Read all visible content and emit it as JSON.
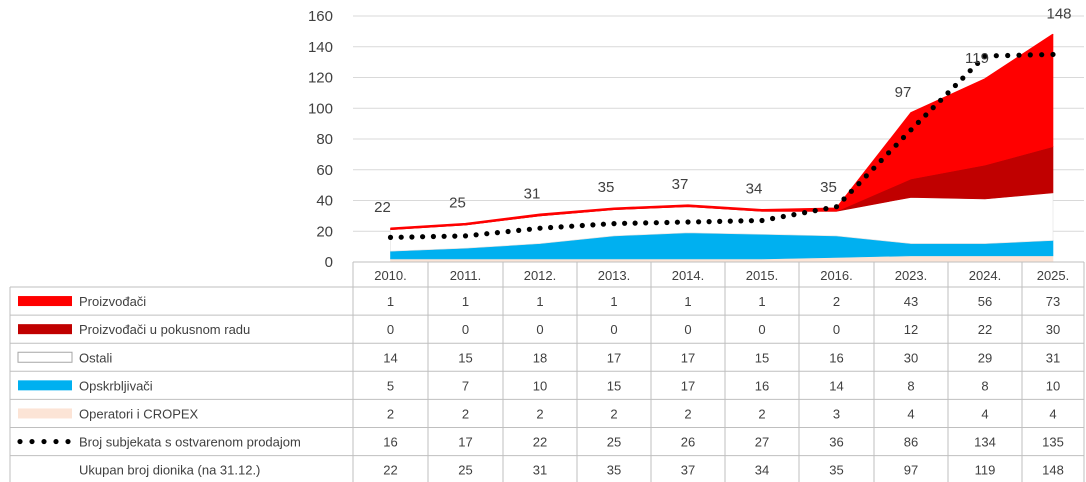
{
  "chart_data": {
    "type": "area",
    "stacked": true,
    "categories": [
      "2010.",
      "2011.",
      "2012.",
      "2013.",
      "2014.",
      "2015.",
      "2016.",
      "2023.",
      "2024.",
      "2025."
    ],
    "ylim": [
      0,
      160
    ],
    "yticks": [
      0,
      20,
      40,
      60,
      80,
      100,
      120,
      140,
      160
    ],
    "grid": true,
    "legend": "data-table-left",
    "series": [
      {
        "name": "Proizvođači",
        "kind": "area",
        "color": "#ff0000",
        "values": [
          1,
          1,
          1,
          1,
          1,
          1,
          2,
          43,
          56,
          73
        ]
      },
      {
        "name": "Proizvođači u pokusnom radu",
        "kind": "area",
        "color": "#c00000",
        "values": [
          0,
          0,
          0,
          0,
          0,
          0,
          0,
          12,
          22,
          30
        ]
      },
      {
        "name": "Ostali",
        "kind": "area",
        "color": "#ffffff",
        "values": [
          14,
          15,
          18,
          17,
          17,
          15,
          16,
          30,
          29,
          31
        ]
      },
      {
        "name": "Opskrbljivači",
        "kind": "area",
        "color": "#00b0f0",
        "values": [
          5,
          7,
          10,
          15,
          17,
          16,
          14,
          8,
          8,
          10
        ]
      },
      {
        "name": "Operatori i CROPEX",
        "kind": "area",
        "color": "#fce4d6",
        "values": [
          2,
          2,
          2,
          2,
          2,
          2,
          3,
          4,
          4,
          4
        ]
      },
      {
        "name": "Broj subjekata s ostvarenom prodajom",
        "kind": "dotted-line",
        "color": "#000000",
        "values": [
          16,
          17,
          22,
          25,
          26,
          27,
          36,
          86,
          134,
          135
        ]
      },
      {
        "name": "Ukupan broj dionika (na 31.12.)",
        "kind": "total-label",
        "color": "#404040",
        "values": [
          22,
          25,
          31,
          35,
          37,
          34,
          35,
          97,
          119,
          148
        ]
      }
    ],
    "stack_order_bottom_to_top": [
      4,
      3,
      2,
      1,
      0
    ]
  }
}
